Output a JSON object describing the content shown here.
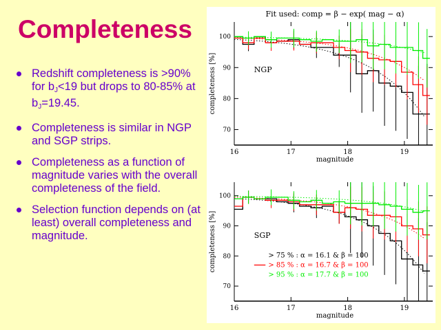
{
  "slide": {
    "title": "Completeness",
    "bullets": [
      {
        "parts": [
          "Redshift completeness is >90% for b",
          "J",
          "<19 but drops to 80-85% at b",
          "J",
          "=19.45."
        ]
      },
      {
        "parts": [
          "Completeness is similar in NGP and SGP strips."
        ]
      },
      {
        "parts": [
          "Completeness as a function of magnitude varies with the overall completeness of the field."
        ]
      },
      {
        "parts": [
          "Selection function depends on (at least) overall completeness and magnitude."
        ]
      }
    ]
  },
  "colors": {
    "background": "#ffffc0",
    "title": "#cc0066",
    "text": "#6600cc",
    "c75": "#000000",
    "c85": "#ff0000",
    "c95": "#00ee00"
  },
  "chart_data": [
    {
      "type": "line",
      "title": "Fit used: comp = β − exp( mag − α)",
      "panel_label": "NGP",
      "xlabel": "magnitude",
      "ylabel": "completeness [%]",
      "xlim": [
        16,
        19.5
      ],
      "ylim": [
        65,
        104.7
      ],
      "xticks": [
        "16",
        "17",
        "18",
        "19"
      ],
      "yticks": [
        "100",
        "90",
        "80",
        "70"
      ],
      "bins": [
        16.05,
        16.25,
        16.45,
        16.65,
        16.85,
        17.05,
        17.25,
        17.45,
        17.65,
        17.85,
        18.05,
        18.25,
        18.45,
        18.65,
        18.85,
        19.05,
        19.25,
        19.4
      ],
      "series": [
        {
          "name": "> 75 %",
          "color": "#000000",
          "values": [
            100,
            97.5,
            100,
            99,
            98.5,
            99,
            97.5,
            96.5,
            96.5,
            94,
            94,
            88,
            89,
            85,
            84,
            82,
            75,
            75
          ]
        },
        {
          "name": "> 85 %",
          "color": "#ff0000",
          "values": [
            99.5,
            98,
            99.5,
            98,
            98.5,
            98.5,
            97.5,
            98,
            98,
            96.5,
            95.5,
            95,
            93,
            92.5,
            92,
            88.5,
            84.5,
            81
          ]
        },
        {
          "name": "> 95 %",
          "color": "#00ee00",
          "values": [
            100,
            99.5,
            100,
            99,
            99.5,
            99.5,
            99,
            98.5,
            99,
            98.5,
            98.5,
            99,
            97,
            97.5,
            96.5,
            96.5,
            95.5,
            93
          ]
        }
      ],
      "fits": [
        {
          "name": "> 75 %",
          "alpha": 16.1,
          "beta": 100,
          "color": "#000000"
        },
        {
          "name": "> 85 %",
          "alpha": 16.7,
          "beta": 100,
          "color": "#ff0000"
        },
        {
          "name": "> 95 %",
          "alpha": 17.7,
          "beta": 100,
          "color": "#00ee00"
        }
      ]
    },
    {
      "type": "line",
      "panel_label": "SGP",
      "xlabel": "magnitude",
      "ylabel": "completeness [%]",
      "xlim": [
        16,
        19.5
      ],
      "ylim": [
        65,
        104.5
      ],
      "xticks": [
        "16",
        "17",
        "18",
        "19"
      ],
      "yticks": [
        "100",
        "90",
        "80",
        "70"
      ],
      "bins": [
        16.05,
        16.25,
        16.45,
        16.65,
        16.85,
        17.05,
        17.25,
        17.45,
        17.65,
        17.85,
        18.05,
        18.25,
        18.45,
        18.65,
        18.85,
        19.05,
        19.25,
        19.4
      ],
      "series": [
        {
          "name": "> 75 %",
          "color": "#000000",
          "values": [
            95.5,
            99.5,
            99,
            99,
            98,
            97.5,
            96.5,
            96,
            96.5,
            94.5,
            93,
            92,
            90,
            87.5,
            85,
            79,
            77,
            75
          ]
        },
        {
          "name": "> 85 %",
          "color": "#ff0000",
          "values": [
            96.5,
            99.5,
            99,
            98.5,
            98.5,
            98,
            97,
            97,
            97,
            94.5,
            96,
            95.5,
            93.5,
            93.5,
            93,
            90,
            89,
            87
          ]
        },
        {
          "name": "> 95 %",
          "color": "#00ee00",
          "values": [
            99,
            99.5,
            99,
            99.5,
            99.5,
            98.5,
            98,
            98.5,
            97.5,
            98,
            97.5,
            97.5,
            97.5,
            97,
            96.5,
            95.5,
            94.5,
            95
          ]
        }
      ],
      "fits": [
        {
          "name": "> 75 %",
          "alpha": 16.1,
          "beta": 100,
          "color": "#000000"
        },
        {
          "name": "> 85 %",
          "alpha": 16.7,
          "beta": 100,
          "color": "#ff0000"
        },
        {
          "name": "> 95 %",
          "alpha": 17.7,
          "beta": 100,
          "color": "#00ee00"
        }
      ],
      "legend": [
        {
          "text": "> 75 % : α = 16.1 & β = 100",
          "color": "#000000"
        },
        {
          "text": "> 85 % : α = 16.7 & β = 100",
          "color": "#ff0000"
        },
        {
          "text": "> 95 % : α = 17.7 & β = 100",
          "color": "#00ee00"
        }
      ],
      "legend_position": "bottom-center"
    }
  ]
}
